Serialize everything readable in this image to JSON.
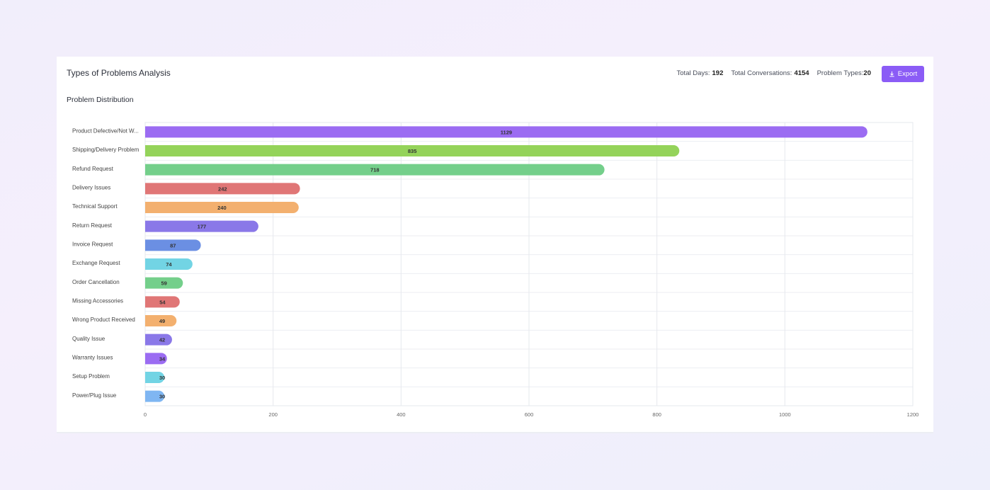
{
  "header": {
    "title": "Types of Problems Analysis",
    "stats": [
      {
        "label": "Total Days:",
        "value": 192
      },
      {
        "label": "Total Conversations:",
        "value": 4154
      },
      {
        "label": "Problem Types:",
        "value": 20
      }
    ],
    "button": "Export"
  },
  "chart_data": {
    "type": "bar",
    "orientation": "horizontal",
    "title": "Problem Distribution",
    "categories": [
      "Product Defective/Not W...",
      "Shipping/Delivery Problem",
      "Refund Request",
      "Delivery Issues",
      "Technical Support",
      "Return Request",
      "Invoice Request",
      "Exchange Request",
      "Order Cancellation",
      "Missing Accessories",
      "Wrong Product Received",
      "Quality Issue",
      "Warranty Issues",
      "Setup Problem",
      "Power/Plug Issue"
    ],
    "values": [
      1129,
      835,
      718,
      242,
      240,
      177,
      87,
      74,
      59,
      54,
      49,
      42,
      34,
      30,
      30
    ],
    "colors": [
      "#9b6cf2",
      "#94d35a",
      "#74cf8b",
      "#e07676",
      "#f3b06f",
      "#8a78e8",
      "#6b8fe3",
      "#72d4e4",
      "#74cf8b",
      "#e07676",
      "#f3b06f",
      "#8a78e8",
      "#9b6cf2",
      "#72d4e4",
      "#7fb6f2"
    ],
    "xlim": [
      0,
      1200
    ],
    "xticks": [
      0,
      200,
      400,
      600,
      800,
      1000,
      1200
    ],
    "grid": true
  }
}
